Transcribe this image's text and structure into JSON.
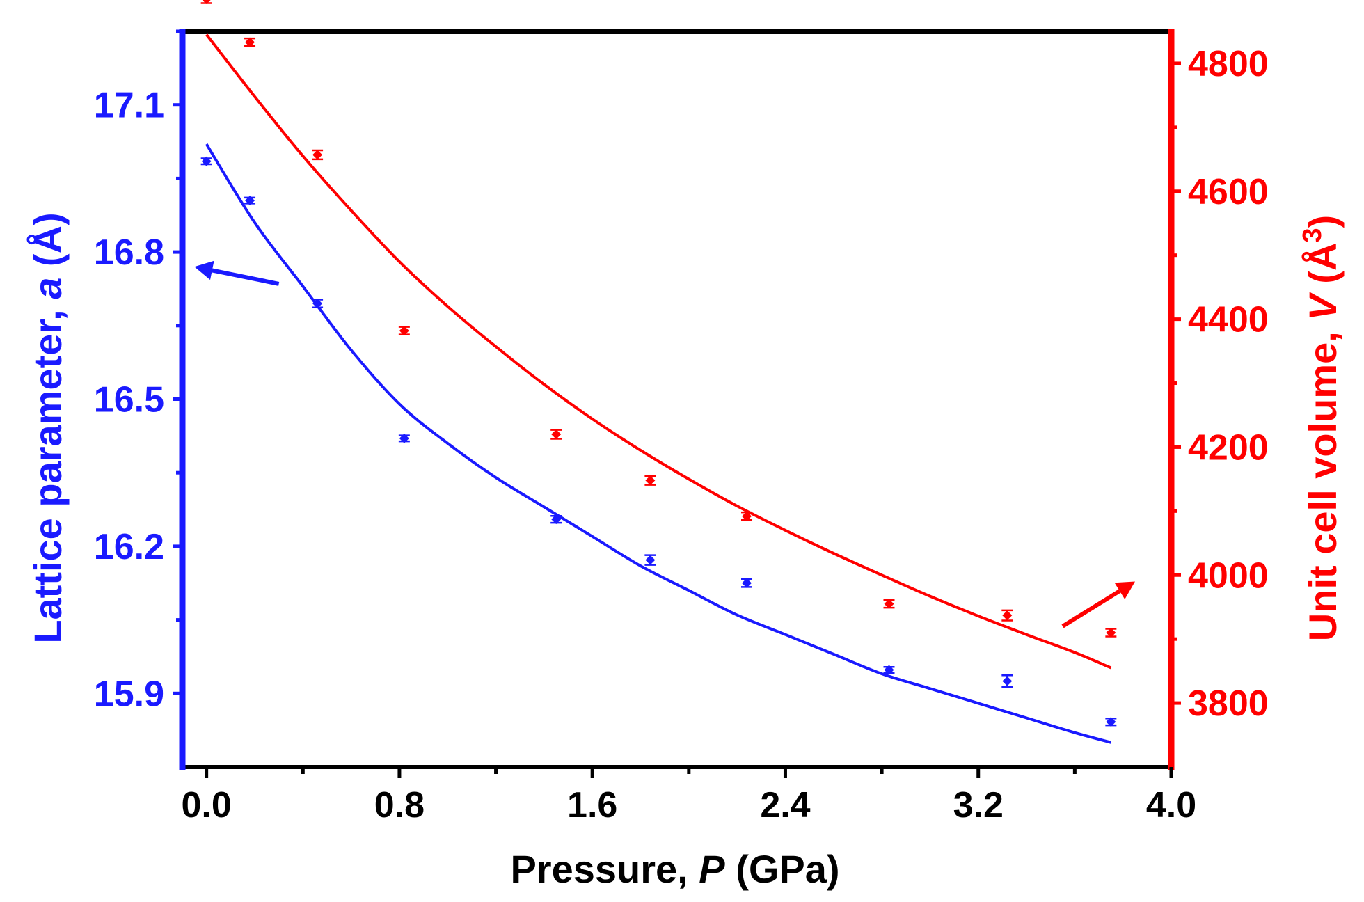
{
  "chart_data": {
    "type": "scatter",
    "x_axis": {
      "label_prefix": "Pressure, ",
      "label_var": "P",
      "label_suffix": " (GPa)",
      "range": [
        -0.1,
        4.0
      ],
      "ticks": [
        0.0,
        0.8,
        1.6,
        2.4,
        3.2,
        4.0
      ],
      "tick_labels": [
        "0.0",
        "0.8",
        "1.6",
        "2.4",
        "3.2",
        "4.0"
      ],
      "minor_ticks": [
        0.4,
        1.2,
        2.0,
        2.8,
        3.6
      ]
    },
    "y_left": {
      "label_prefix": "Lattice parameter, ",
      "label_var": "a",
      "label_suffix": " (Å)",
      "range": [
        15.75,
        17.25
      ],
      "ticks": [
        15.9,
        16.2,
        16.5,
        16.8,
        17.1
      ],
      "tick_labels": [
        "15.9",
        "16.2",
        "16.5",
        "16.8",
        "17.1"
      ],
      "minor_ticks": [
        16.05,
        16.35,
        16.65,
        16.95,
        17.25
      ],
      "color": "#1a1aff"
    },
    "y_right": {
      "label_prefix": "Unit cell volume, ",
      "label_var": "V",
      "label_suffix": " (Å",
      "label_sup": "3",
      "label_end": ")",
      "range": [
        3700,
        4850
      ],
      "ticks": [
        3800,
        4000,
        4200,
        4400,
        4600,
        4800
      ],
      "tick_labels": [
        "3800",
        "4000",
        "4200",
        "4400",
        "4600",
        "4800"
      ],
      "minor_ticks": [
        3900,
        4100,
        4300,
        4500,
        4700
      ],
      "color": "#ff0000"
    },
    "series": [
      {
        "name": "Lattice parameter a",
        "axis": "left",
        "color": "#1a1aff",
        "x": [
          0.0,
          0.18,
          0.46,
          0.82,
          1.45,
          1.84,
          2.24,
          2.83,
          3.32,
          3.75
        ],
        "y": [
          16.985,
          16.905,
          16.695,
          16.42,
          16.255,
          16.172,
          16.125,
          15.948,
          15.925,
          15.842
        ],
        "err": [
          0.006,
          0.006,
          0.008,
          0.006,
          0.007,
          0.01,
          0.008,
          0.006,
          0.012,
          0.007
        ]
      },
      {
        "name": "Unit cell volume V",
        "axis": "right",
        "color": "#ff0000",
        "x": [
          0.0,
          0.18,
          0.46,
          0.82,
          1.45,
          1.84,
          2.24,
          2.83,
          3.32,
          3.75
        ],
        "y": [
          4900,
          4833,
          4657,
          4382,
          4220,
          4148,
          4092,
          3955,
          3937,
          3910
        ],
        "err": [
          6,
          6,
          7,
          6,
          7,
          7,
          6,
          6,
          8,
          6
        ]
      }
    ],
    "fits": [
      {
        "name": "Fit a",
        "axis": "left",
        "color": "#1a1aff",
        "x": [
          0.0,
          0.2,
          0.4,
          0.6,
          0.8,
          1.0,
          1.2,
          1.4,
          1.6,
          1.8,
          2.0,
          2.2,
          2.4,
          2.6,
          2.8,
          3.0,
          3.2,
          3.4,
          3.6,
          3.75
        ],
        "y": [
          17.02,
          16.86,
          16.73,
          16.6,
          16.49,
          16.41,
          16.34,
          16.28,
          16.22,
          16.16,
          16.11,
          16.06,
          16.02,
          15.98,
          15.94,
          15.91,
          15.88,
          15.85,
          15.82,
          15.8
        ]
      },
      {
        "name": "Fit V",
        "axis": "right",
        "color": "#ff0000",
        "x": [
          0.0,
          0.2,
          0.4,
          0.6,
          0.8,
          1.0,
          1.2,
          1.4,
          1.6,
          1.8,
          2.0,
          2.2,
          2.4,
          2.6,
          2.8,
          3.0,
          3.2,
          3.4,
          3.6,
          3.75
        ],
        "y": [
          4845,
          4748,
          4655,
          4570,
          4490,
          4420,
          4357,
          4298,
          4244,
          4195,
          4150,
          4108,
          4070,
          4034,
          4000,
          3967,
          3936,
          3907,
          3879,
          3855
        ]
      }
    ],
    "annotations": [
      {
        "name": "left-axis-arrow",
        "color": "#1a1aff",
        "from": [
          0.3,
          16.735
        ],
        "to": [
          -0.05,
          16.77
        ]
      },
      {
        "name": "right-axis-arrow",
        "color": "#ff0000",
        "from": [
          3.55,
          3920
        ],
        "to": [
          3.85,
          3990
        ]
      }
    ]
  }
}
